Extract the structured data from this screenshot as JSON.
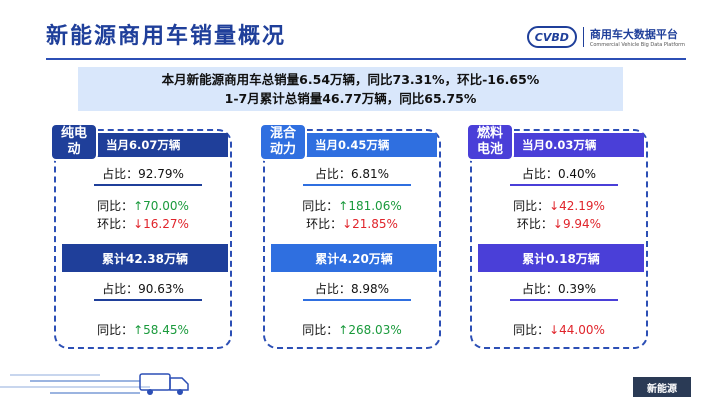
{
  "header": {
    "title": "新能源商用车销量概况",
    "logo_mark": "CVBD",
    "logo_cn": "商用车大数据平台",
    "logo_en": "Commercial Vehicle Big Data Platform"
  },
  "summary": {
    "line1": "本月新能源商用车总销量6.54万辆，同比73.31%，环比-16.65%",
    "line2": "1-7月累计总销量46.77万辆，同比65.75%"
  },
  "cards": [
    {
      "tag": "纯电\n动",
      "month": "当月6.07万辆",
      "share_label": "占比：",
      "share": "92.79%",
      "yoy_label": "同比：",
      "yoy": "↑70.00%",
      "yoy_dir": "up",
      "mom_label": "环比：",
      "mom": "↓16.27%",
      "mom_dir": "down",
      "cum": "累计42.38万辆",
      "cum_share_label": "占比：",
      "cum_share": "90.63%",
      "cum_yoy_label": "同比：",
      "cum_yoy": "↑58.45%",
      "cum_yoy_dir": "up"
    },
    {
      "tag": "混合\n动力",
      "month": "当月0.45万辆",
      "share_label": "占比：",
      "share": "6.81%",
      "yoy_label": "同比：",
      "yoy": "↑181.06%",
      "yoy_dir": "up",
      "mom_label": "环比：",
      "mom": "↓21.85%",
      "mom_dir": "down",
      "cum": "累计4.20万辆",
      "cum_share_label": "占比：",
      "cum_share": "8.98%",
      "cum_yoy_label": "同比：",
      "cum_yoy": "↑268.03%",
      "cum_yoy_dir": "up"
    },
    {
      "tag": "燃料\n电池",
      "month": "当月0.03万辆",
      "share_label": "占比：",
      "share": "0.40%",
      "yoy_label": "同比：",
      "yoy": "↓42.19%",
      "yoy_dir": "down",
      "mom_label": "环比：",
      "mom": "↓9.94%",
      "mom_dir": "down",
      "cum": "累计0.18万辆",
      "cum_share_label": "占比：",
      "cum_share": "0.39%",
      "cum_yoy_label": "同比：",
      "cum_yoy": "↓44.00%",
      "cum_yoy_dir": "down"
    }
  ],
  "colors": {
    "card1_dark": "#1f3f9a",
    "card2_dark": "#2f6fe0",
    "card3_dark": "#4a3fd8",
    "up": "#1a9a3c",
    "down": "#e0242b"
  },
  "footer": {
    "corner_label": "新能源"
  }
}
